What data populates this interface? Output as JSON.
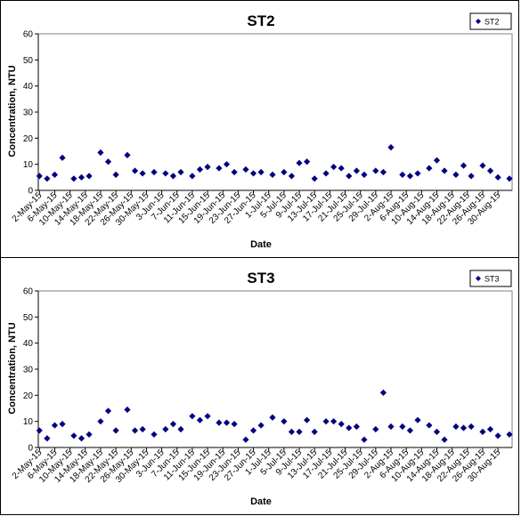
{
  "chart_data": [
    {
      "type": "scatter",
      "title": "ST2",
      "xlabel": "Date",
      "ylabel": "Concentration, NTU",
      "ylim": [
        0,
        60
      ],
      "yticks": [
        0,
        10,
        20,
        30,
        40,
        50,
        60
      ],
      "x_tick_labels": [
        "2-May-15",
        "6-May-15",
        "10-May-15",
        "14-May-15",
        "18-May-15",
        "22-May-15",
        "26-May-15",
        "30-May-15",
        "3-Jun-15",
        "7-Jun-15",
        "11-Jun-15",
        "15-Jun-15",
        "19-Jun-15",
        "23-Jun-15",
        "27-Jun-15",
        "1-Jul-15",
        "5-Jul-15",
        "9-Jul-15",
        "13-Jul-15",
        "17-Jul-15",
        "21-Jul-15",
        "25-Jul-15",
        "29-Jul-15",
        "2-Aug-15",
        "6-Aug-15",
        "10-Aug-15",
        "14-Aug-15",
        "18-Aug-15",
        "22-Aug-15",
        "26-Aug-15",
        "30-Aug-15"
      ],
      "grid": false,
      "legend": "top-right",
      "series": [
        {
          "name": "ST2",
          "color": "#000080",
          "marker": "diamond",
          "points": [
            [
              "2-May-15",
              5.5
            ],
            [
              "4-May-15",
              4.5
            ],
            [
              "6-May-15",
              6
            ],
            [
              "8-May-15",
              12.5
            ],
            [
              "11-May-15",
              4.5
            ],
            [
              "13-May-15",
              5
            ],
            [
              "15-May-15",
              5.5
            ],
            [
              "18-May-15",
              14.5
            ],
            [
              "20-May-15",
              11
            ],
            [
              "22-May-15",
              6
            ],
            [
              "25-May-15",
              13.5
            ],
            [
              "27-May-15",
              7.5
            ],
            [
              "29-May-15",
              6.5
            ],
            [
              "1-Jun-15",
              7
            ],
            [
              "4-Jun-15",
              6.5
            ],
            [
              "6-Jun-15",
              5.5
            ],
            [
              "8-Jun-15",
              7
            ],
            [
              "11-Jun-15",
              5.5
            ],
            [
              "13-Jun-15",
              8
            ],
            [
              "15-Jun-15",
              9
            ],
            [
              "18-Jun-15",
              8.5
            ],
            [
              "20-Jun-15",
              10
            ],
            [
              "22-Jun-15",
              7
            ],
            [
              "25-Jun-15",
              8
            ],
            [
              "27-Jun-15",
              6.5
            ],
            [
              "29-Jun-15",
              7
            ],
            [
              "2-Jul-15",
              6
            ],
            [
              "5-Jul-15",
              7
            ],
            [
              "7-Jul-15",
              5.5
            ],
            [
              "9-Jul-15",
              10.5
            ],
            [
              "11-Jul-15",
              11
            ],
            [
              "13-Jul-15",
              4.5
            ],
            [
              "16-Jul-15",
              6.5
            ],
            [
              "18-Jul-15",
              9
            ],
            [
              "20-Jul-15",
              8.5
            ],
            [
              "22-Jul-15",
              5.5
            ],
            [
              "24-Jul-15",
              7.5
            ],
            [
              "26-Jul-15",
              6
            ],
            [
              "29-Jul-15",
              7.5
            ],
            [
              "31-Jul-15",
              7
            ],
            [
              "2-Aug-15",
              16.5
            ],
            [
              "5-Aug-15",
              6
            ],
            [
              "7-Aug-15",
              5.5
            ],
            [
              "9-Aug-15",
              6.5
            ],
            [
              "12-Aug-15",
              8.5
            ],
            [
              "14-Aug-15",
              11.5
            ],
            [
              "16-Aug-15",
              7.5
            ],
            [
              "19-Aug-15",
              6
            ],
            [
              "21-Aug-15",
              9.5
            ],
            [
              "23-Aug-15",
              5.5
            ],
            [
              "26-Aug-15",
              9.5
            ],
            [
              "28-Aug-15",
              7.5
            ],
            [
              "30-Aug-15",
              5
            ],
            [
              "2-Sep-15",
              4.5
            ]
          ]
        }
      ]
    },
    {
      "type": "scatter",
      "title": "ST3",
      "xlabel": "Date",
      "ylabel": "Concentration, NTU",
      "ylim": [
        0,
        60
      ],
      "yticks": [
        0,
        10,
        20,
        30,
        40,
        50,
        60
      ],
      "x_tick_labels": [
        "2-May-15",
        "6-May-15",
        "10-May-15",
        "14-May-15",
        "18-May-15",
        "22-May-15",
        "26-May-15",
        "30-May-15",
        "3-Jun-15",
        "7-Jun-15",
        "11-Jun-15",
        "15-Jun-15",
        "19-Jun-15",
        "23-Jun-15",
        "27-Jun-15",
        "1-Jul-15",
        "5-Jul-15",
        "9-Jul-15",
        "13-Jul-15",
        "17-Jul-15",
        "21-Jul-15",
        "25-Jul-15",
        "29-Jul-15",
        "2-Aug-15",
        "6-Aug-15",
        "10-Aug-15",
        "14-Aug-15",
        "18-Aug-15",
        "22-Aug-15",
        "26-Aug-15",
        "30-Aug-15"
      ],
      "grid": false,
      "legend": "top-right",
      "series": [
        {
          "name": "ST3",
          "color": "#000080",
          "marker": "diamond",
          "points": [
            [
              "2-May-15",
              6.5
            ],
            [
              "4-May-15",
              3.5
            ],
            [
              "6-May-15",
              8.5
            ],
            [
              "8-May-15",
              9
            ],
            [
              "11-May-15",
              4.5
            ],
            [
              "13-May-15",
              3.5
            ],
            [
              "15-May-15",
              5
            ],
            [
              "18-May-15",
              10
            ],
            [
              "20-May-15",
              14
            ],
            [
              "22-May-15",
              6.5
            ],
            [
              "25-May-15",
              14.5
            ],
            [
              "27-May-15",
              6.5
            ],
            [
              "29-May-15",
              7
            ],
            [
              "1-Jun-15",
              5
            ],
            [
              "4-Jun-15",
              7
            ],
            [
              "6-Jun-15",
              9
            ],
            [
              "8-Jun-15",
              7
            ],
            [
              "11-Jun-15",
              12
            ],
            [
              "13-Jun-15",
              10.5
            ],
            [
              "15-Jun-15",
              12
            ],
            [
              "18-Jun-15",
              9.5
            ],
            [
              "20-Jun-15",
              9.5
            ],
            [
              "22-Jun-15",
              9
            ],
            [
              "25-Jun-15",
              3
            ],
            [
              "27-Jun-15",
              6.5
            ],
            [
              "29-Jun-15",
              8.5
            ],
            [
              "2-Jul-15",
              11.5
            ],
            [
              "5-Jul-15",
              10
            ],
            [
              "7-Jul-15",
              6
            ],
            [
              "9-Jul-15",
              6
            ],
            [
              "11-Jul-15",
              10.5
            ],
            [
              "13-Jul-15",
              6
            ],
            [
              "16-Jul-15",
              10
            ],
            [
              "18-Jul-15",
              10
            ],
            [
              "20-Jul-15",
              9
            ],
            [
              "22-Jul-15",
              7.5
            ],
            [
              "24-Jul-15",
              8
            ],
            [
              "26-Jul-15",
              3
            ],
            [
              "29-Jul-15",
              7
            ],
            [
              "31-Jul-15",
              21
            ],
            [
              "2-Aug-15",
              8
            ],
            [
              "5-Aug-15",
              8
            ],
            [
              "7-Aug-15",
              6.5
            ],
            [
              "9-Aug-15",
              10.5
            ],
            [
              "12-Aug-15",
              8.5
            ],
            [
              "14-Aug-15",
              6
            ],
            [
              "16-Aug-15",
              3
            ],
            [
              "19-Aug-15",
              8
            ],
            [
              "21-Aug-15",
              7.5
            ],
            [
              "23-Aug-15",
              8
            ],
            [
              "26-Aug-15",
              6
            ],
            [
              "28-Aug-15",
              7
            ],
            [
              "30-Aug-15",
              4.5
            ],
            [
              "2-Sep-15",
              5
            ]
          ]
        }
      ]
    }
  ]
}
